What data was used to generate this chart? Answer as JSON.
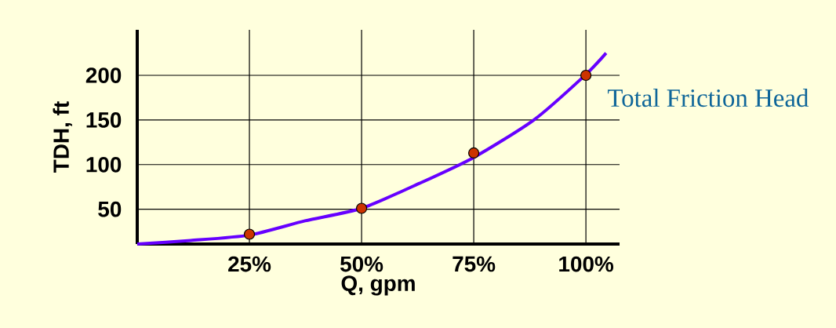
{
  "chart_data": {
    "type": "line",
    "xlabel": "Q, gpm",
    "ylabel": "TDH, ft",
    "xlim": [
      0,
      107.5
    ],
    "ylim": [
      11,
      251
    ],
    "xticks": [
      {
        "value": 25,
        "label": "25%"
      },
      {
        "value": 50,
        "label": "50%"
      },
      {
        "value": 75,
        "label": "75%"
      },
      {
        "value": 100,
        "label": "100%"
      }
    ],
    "yticks": [
      50,
      100,
      150,
      200
    ],
    "grid": true,
    "legend": false,
    "line_style": "solid",
    "series": [
      {
        "name": "Total Friction Head",
        "color": "#6600ff",
        "marker": "none",
        "x": [
          0,
          11.9,
          25,
          37.4,
          50,
          62.9,
          75,
          88.4,
          100,
          104.5
        ],
        "values": [
          11,
          15,
          21,
          37,
          51,
          79,
          108,
          150,
          201,
          225
        ]
      },
      {
        "type": "scatter",
        "color": "#cc3300",
        "marker": "circle",
        "x": [
          25,
          50,
          75,
          100
        ],
        "values": [
          22,
          51,
          113,
          200
        ]
      }
    ]
  }
}
